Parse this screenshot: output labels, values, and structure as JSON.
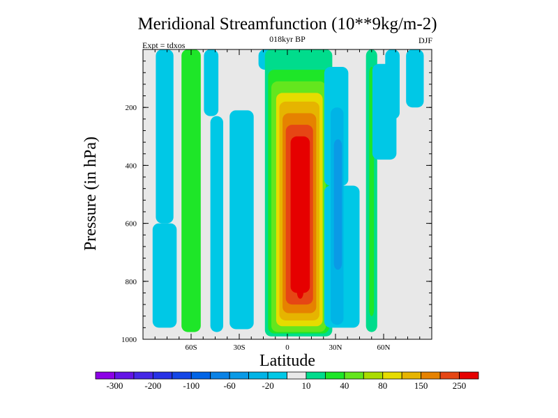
{
  "chart_data": {
    "type": "heatmap",
    "title": "Meridional Streamfunction (10**9kg/m-2)",
    "center_string": "018kyr BP",
    "left_string": "Expt = tdxos",
    "right_string": "DJF",
    "xlabel": "Latitude",
    "ylabel": "Pressure (in hPa)",
    "xlim": [
      -90,
      90
    ],
    "ylim": [
      1000,
      0
    ],
    "x_ticks": [
      {
        "value": -60,
        "label": "60S"
      },
      {
        "value": -30,
        "label": "30S"
      },
      {
        "value": 0,
        "label": "0"
      },
      {
        "value": 30,
        "label": "30N"
      },
      {
        "value": 60,
        "label": "60N"
      }
    ],
    "y_ticks": [
      {
        "value": 200,
        "label": "200"
      },
      {
        "value": 400,
        "label": "400"
      },
      {
        "value": 600,
        "label": "600"
      },
      {
        "value": 800,
        "label": "800"
      },
      {
        "value": 1000,
        "label": "1000"
      }
    ],
    "colorbar": {
      "levels": [
        -300,
        -250,
        -200,
        -150,
        -100,
        -80,
        -60,
        -40,
        -20,
        -10,
        10,
        20,
        40,
        60,
        80,
        100,
        150,
        200,
        250,
        300
      ],
      "labels": [
        "-300",
        "-200",
        "-100",
        "-60",
        "-20",
        "10",
        "40",
        "80",
        "150",
        "250"
      ],
      "colors": [
        "#8c00e6",
        "#6414e6",
        "#4628e6",
        "#2832e6",
        "#1446e6",
        "#0064e6",
        "#0a82e6",
        "#0a9ae6",
        "#00b4e6",
        "#00c8e6",
        "#e8e8e8",
        "#00dc8c",
        "#1ee628",
        "#64e61e",
        "#aadc00",
        "#e6dc00",
        "#e6b400",
        "#e68200",
        "#e64614",
        "#e60000"
      ]
    },
    "cells": [
      {
        "lat": [
          -82,
          -71
        ],
        "p": [
          0,
          600
        ],
        "value": -15
      },
      {
        "lat": [
          -84,
          -69
        ],
        "p": [
          600,
          960
        ],
        "value": -15
      },
      {
        "lat": [
          -66,
          -54
        ],
        "p": [
          0,
          975
        ],
        "value": 25
      },
      {
        "lat": [
          -62,
          -57
        ],
        "p": [
          150,
          930
        ],
        "value": 35
      },
      {
        "lat": [
          -52,
          -43
        ],
        "p": [
          0,
          230
        ],
        "value": -15
      },
      {
        "lat": [
          -48,
          -40
        ],
        "p": [
          230,
          975
        ],
        "value": -15
      },
      {
        "lat": [
          -36,
          -21
        ],
        "p": [
          210,
          965
        ],
        "value": -15
      },
      {
        "lat": [
          -18,
          -6
        ],
        "p": [
          0,
          70
        ],
        "value": -15
      },
      {
        "lat": [
          -14,
          28
        ],
        "p": [
          0,
          990
        ],
        "value": 15
      },
      {
        "lat": [
          -12,
          26
        ],
        "p": [
          70,
          980
        ],
        "value": 25
      },
      {
        "lat": [
          -10,
          24
        ],
        "p": [
          110,
          975
        ],
        "value": 50
      },
      {
        "lat": [
          -7,
          22
        ],
        "p": [
          150,
          955
        ],
        "value": 90
      },
      {
        "lat": [
          -5,
          20
        ],
        "p": [
          180,
          935
        ],
        "value": 120
      },
      {
        "lat": [
          -3,
          18
        ],
        "p": [
          220,
          910
        ],
        "value": 170
      },
      {
        "lat": [
          -1,
          16
        ],
        "p": [
          260,
          880
        ],
        "value": 220
      },
      {
        "lat": [
          2,
          14
        ],
        "p": [
          300,
          840
        ],
        "value": 270
      },
      {
        "lat": [
          6,
          10
        ],
        "p": [
          400,
          860
        ],
        "value": 320
      },
      {
        "lat": [
          23,
          38
        ],
        "p": [
          60,
          470
        ],
        "value": -15
      },
      {
        "lat": [
          23,
          45
        ],
        "p": [
          470,
          960
        ],
        "value": -15
      },
      {
        "lat": [
          27,
          35
        ],
        "p": [
          200,
          950
        ],
        "value": -35
      },
      {
        "lat": [
          29,
          34
        ],
        "p": [
          310,
          760
        ],
        "value": -50
      },
      {
        "lat": [
          49,
          56
        ],
        "p": [
          0,
          975
        ],
        "value": 15
      },
      {
        "lat": [
          51,
          54
        ],
        "p": [
          60,
          920
        ],
        "value": 35
      },
      {
        "lat": [
          53,
          68
        ],
        "p": [
          50,
          380
        ],
        "value": -15
      },
      {
        "lat": [
          61,
          70
        ],
        "p": [
          0,
          240
        ],
        "value": -15
      },
      {
        "lat": [
          74,
          85
        ],
        "p": [
          0,
          200
        ],
        "value": -15
      }
    ]
  }
}
